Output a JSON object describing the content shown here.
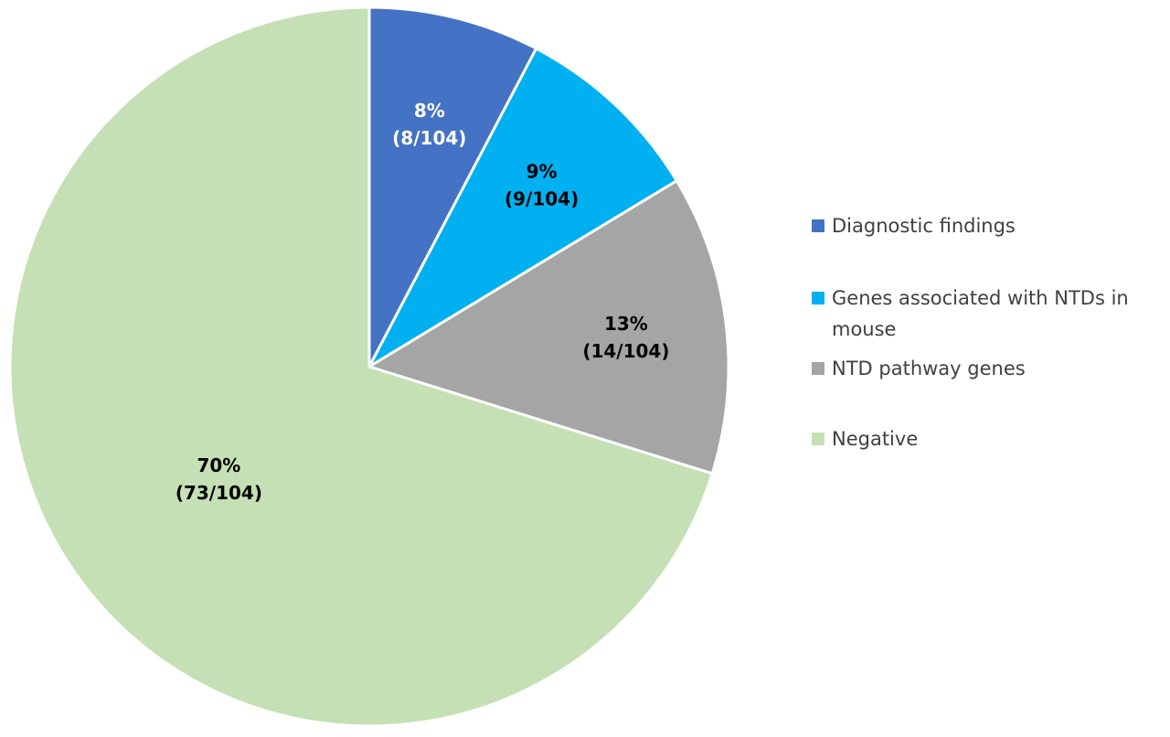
{
  "chart_data": {
    "type": "pie",
    "start_angle_deg": 0,
    "direction": "clockwise",
    "legend_position": "right",
    "slices": [
      {
        "name": "Diagnostic findings",
        "value": 8,
        "count": "8/104",
        "percent_label": "8%",
        "fraction_label": "(8/104)",
        "color": "#4472c4",
        "label_color": "#ffffff",
        "legend_lines": [
          "Diagnostic findings"
        ]
      },
      {
        "name": "Genes associated with NTDs in mouse",
        "value": 9,
        "count": "9/104",
        "percent_label": "9%",
        "fraction_label": "(9/104)",
        "color": "#00b0f0",
        "label_color": "#000000",
        "legend_lines": [
          "Genes associated with NTDs in",
          "mouse"
        ]
      },
      {
        "name": "NTD pathway genes",
        "value": 14,
        "count": "14/104",
        "percent_label": "13%",
        "fraction_label": "(14/104)",
        "color": "#a5a5a5",
        "label_color": "#000000",
        "legend_lines": [
          "NTD pathway genes"
        ]
      },
      {
        "name": "Negative",
        "value": 73,
        "count": "73/104",
        "percent_label": "70%",
        "fraction_label": "(73/104)",
        "color": "#c5e0b4",
        "label_color": "#000000",
        "legend_lines": [
          "Negative"
        ]
      }
    ]
  }
}
